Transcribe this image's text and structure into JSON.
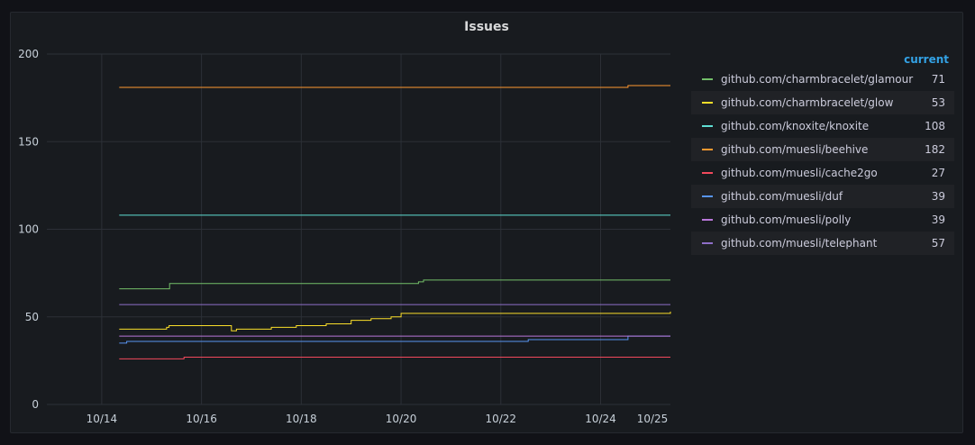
{
  "panel": {
    "title": "Issues"
  },
  "legend": {
    "column_header": "current"
  },
  "chart_data": {
    "type": "line",
    "title": "Issues",
    "x_ticks": [
      "10/14",
      "10/16",
      "10/18",
      "10/20",
      "10/22",
      "10/24",
      " 10/25"
    ],
    "x_tick_labels": [
      "10/14",
      "10/16",
      "10/18",
      "10/20",
      "10/22",
      "10/24",
      "10/25"
    ],
    "y_ticks": [
      0,
      50,
      100,
      150,
      200
    ],
    "ylim": [
      0,
      200
    ],
    "x_range_days": [
      12.9,
      25.4
    ],
    "grid": true,
    "legend_position": "right",
    "series": [
      {
        "name": "github.com/charmbracelet/glamour",
        "color": "#73bf69",
        "current": "71",
        "x": [
          14.35,
          15.35,
          15.36,
          20.3,
          20.35,
          20.45,
          25.4
        ],
        "values": [
          66,
          66,
          69,
          69,
          70,
          71,
          71
        ]
      },
      {
        "name": "github.com/charmbracelet/glow",
        "color": "#fade2a",
        "current": "53",
        "x": [
          14.35,
          14.9,
          15.3,
          15.35,
          16.6,
          16.7,
          17.4,
          17.9,
          18.5,
          19.0,
          19.4,
          19.8,
          20.0,
          22.8,
          25.4
        ],
        "values": [
          43,
          43,
          44,
          45,
          42,
          43,
          44,
          45,
          46,
          48,
          49,
          50,
          52,
          52,
          53
        ]
      },
      {
        "name": "github.com/knoxite/knoxite",
        "color": "#5fdfd4",
        "current": "108",
        "x": [
          14.35,
          25.4
        ],
        "values": [
          108,
          108
        ]
      },
      {
        "name": "github.com/muesli/beehive",
        "color": "#ff9830",
        "current": "182",
        "x": [
          14.35,
          24.5,
          24.55,
          25.4
        ],
        "values": [
          181,
          181,
          182,
          182
        ]
      },
      {
        "name": "github.com/muesli/cache2go",
        "color": "#f2495c",
        "current": "27",
        "x": [
          14.35,
          15.6,
          15.65,
          25.4
        ],
        "values": [
          26,
          26,
          27,
          27
        ]
      },
      {
        "name": "github.com/muesli/duf",
        "color": "#5794f2",
        "current": "39",
        "x": [
          14.35,
          14.45,
          14.5,
          22.5,
          22.55,
          24.5,
          24.55,
          25.4
        ],
        "values": [
          35,
          35,
          36,
          36,
          37,
          37,
          39,
          39
        ]
      },
      {
        "name": "github.com/muesli/polly",
        "color": "#b877d9",
        "current": "39",
        "x": [
          14.35,
          25.4
        ],
        "values": [
          39,
          39
        ]
      },
      {
        "name": "github.com/muesli/telephant",
        "color": "#8f6fc9",
        "current": "57",
        "x": [
          14.35,
          25.4
        ],
        "values": [
          57,
          57
        ]
      }
    ]
  }
}
